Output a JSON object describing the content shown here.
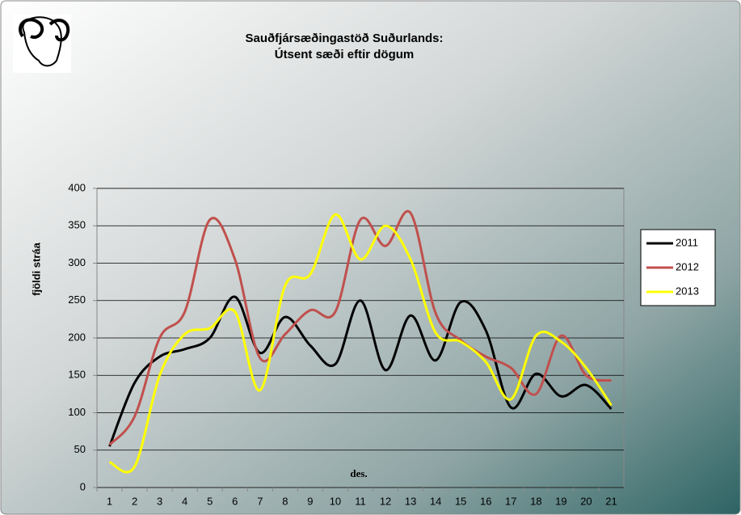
{
  "chart_data": {
    "type": "line",
    "title": "Sauðfjársæðingastöð Suðurlands:",
    "subtitle": "Útsent sæði eftir dögum",
    "y_label": "fjöldi stráa",
    "annotation": "des.",
    "categories": [
      "1",
      "2",
      "3",
      "4",
      "5",
      "6",
      "7",
      "8",
      "9",
      "10",
      "11",
      "12",
      "13",
      "14",
      "15",
      "16",
      "17",
      "18",
      "19",
      "20",
      "21"
    ],
    "series": [
      {
        "name": "2011",
        "color": "#000000",
        "values": [
          55,
          140,
          175,
          185,
          200,
          255,
          180,
          228,
          190,
          165,
          250,
          157,
          230,
          170,
          248,
          210,
          107,
          152,
          122,
          137,
          105
        ]
      },
      {
        "name": "2012",
        "color": "#c0504d",
        "values": [
          57,
          95,
          200,
          235,
          358,
          305,
          173,
          205,
          237,
          235,
          358,
          323,
          367,
          233,
          197,
          175,
          160,
          125,
          203,
          150,
          143
        ]
      },
      {
        "name": "2013",
        "color": "#ffff00",
        "values": [
          34,
          28,
          150,
          205,
          213,
          235,
          130,
          270,
          285,
          365,
          305,
          350,
          305,
          207,
          195,
          168,
          118,
          203,
          195,
          160,
          110
        ]
      }
    ],
    "ylim": [
      0,
      400
    ],
    "yticks": [
      0,
      50,
      100,
      150,
      200,
      250,
      300,
      350,
      400
    ],
    "grid": true,
    "legend": "right",
    "smooth": true
  }
}
